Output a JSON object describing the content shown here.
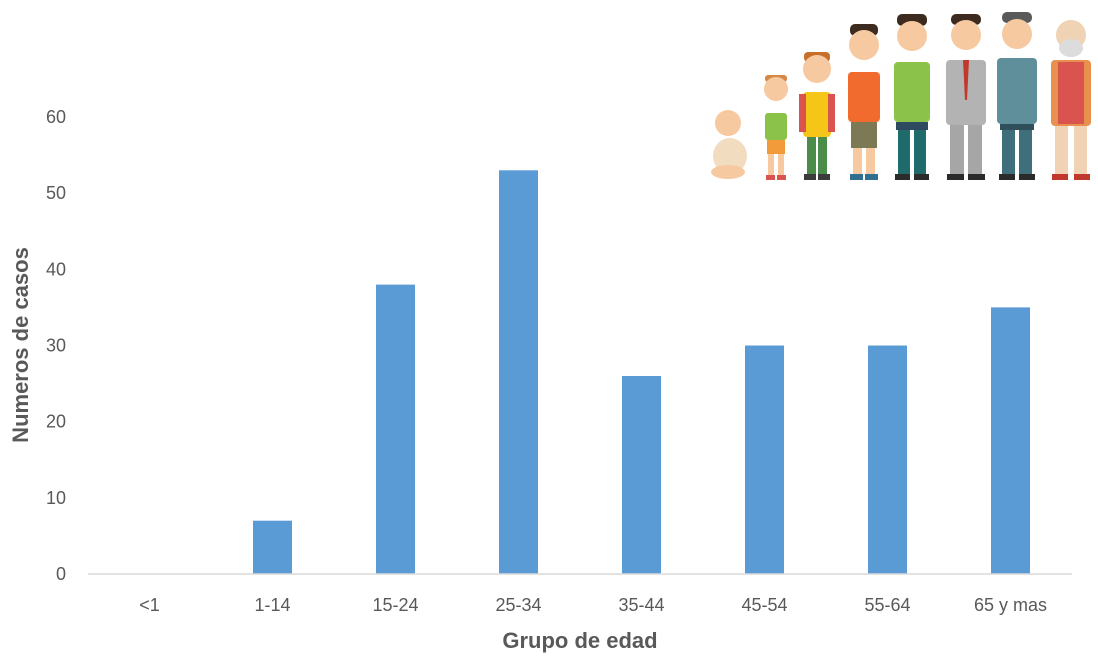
{
  "chart_data": {
    "type": "bar",
    "categories": [
      "<1",
      "1-14",
      "15-24",
      "25-34",
      "35-44",
      "45-54",
      "55-64",
      "65 y mas"
    ],
    "values": [
      0,
      7,
      38,
      53,
      26,
      30,
      30,
      35
    ],
    "title": "",
    "xlabel": "Grupo de edad",
    "ylabel": "Numeros de casos",
    "ylim": [
      0,
      60
    ],
    "yticks": [
      0,
      10,
      20,
      30,
      40,
      50,
      60
    ],
    "grid": false,
    "legend": "none",
    "bar_color": "#5b9bd5",
    "axis_color": "#d9d9d9",
    "text_color": "#595959",
    "decorative_image": "age-progression-people-illustration"
  }
}
